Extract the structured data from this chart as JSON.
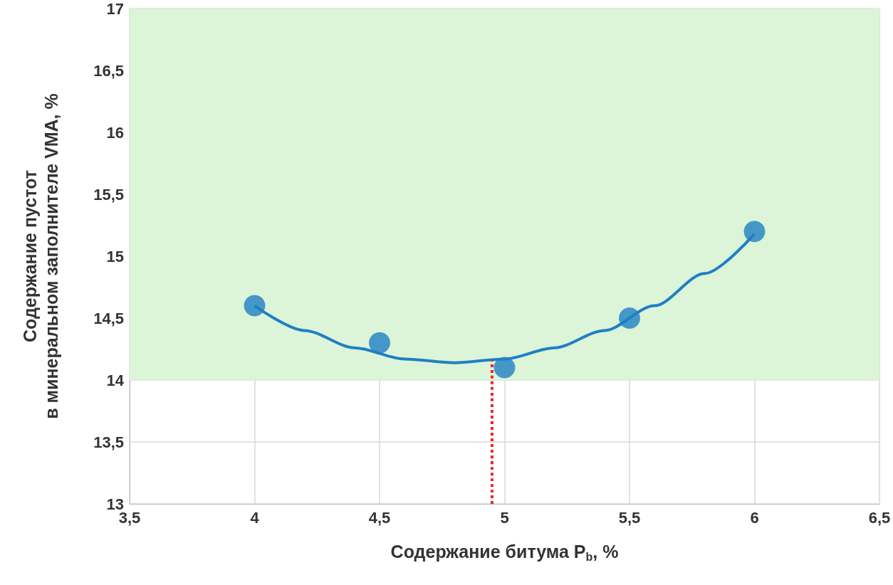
{
  "chart_data": {
    "type": "scatter",
    "xlabel": "Содержание битума P$_{b}$, %",
    "ylabel": "Содержание пустот\nв минеральном заполнителе VMA, %",
    "xlim": [
      3.5,
      6.5
    ],
    "xticks": [
      {
        "value": 3.5,
        "label": "3,5"
      },
      4,
      {
        "value": 4.5,
        "label": "4,5"
      },
      5,
      {
        "value": 5.5,
        "label": "5,5"
      },
      6,
      {
        "value": 6.5,
        "label": "6,5"
      }
    ],
    "ylim": [
      13,
      17
    ],
    "yticks": [
      13,
      {
        "value": 13.5,
        "label": "13,5"
      },
      14,
      {
        "value": 14.5,
        "label": "14,5"
      },
      15,
      {
        "value": 15.5,
        "label": "15,5"
      },
      16,
      {
        "value": 16.5,
        "label": "16,5"
      },
      17
    ],
    "grid": true,
    "series": [
      {
        "type": "line",
        "color": "#1f7fc4",
        "marker": "none",
        "line_style": "solid",
        "x": [
          4,
          4.2,
          4.4,
          4.6,
          4.8,
          5,
          5.2,
          5.4,
          5.6,
          5.8,
          6
        ],
        "values": [
          14.6,
          14.4,
          14.26,
          14.17,
          14.14,
          14.17,
          14.26,
          14.4,
          14.6,
          14.86,
          15.18
        ]
      },
      {
        "color": "#1f7fc4",
        "marker": "circle",
        "x": [
          4,
          4.5,
          5,
          5.5,
          6
        ],
        "values": [
          14.6,
          14.3,
          14.1,
          14.5,
          15.2
        ]
      },
      {
        "type": "line",
        "color": "#e8262e",
        "marker": "none",
        "line_style": "dotted",
        "x": [
          4.95,
          4.95
        ],
        "values": [
          13,
          14.16
        ]
      }
    ],
    "bands": [
      {
        "axis": "y",
        "from": 14,
        "to": 17,
        "color": "#dcf5d8"
      }
    ]
  }
}
